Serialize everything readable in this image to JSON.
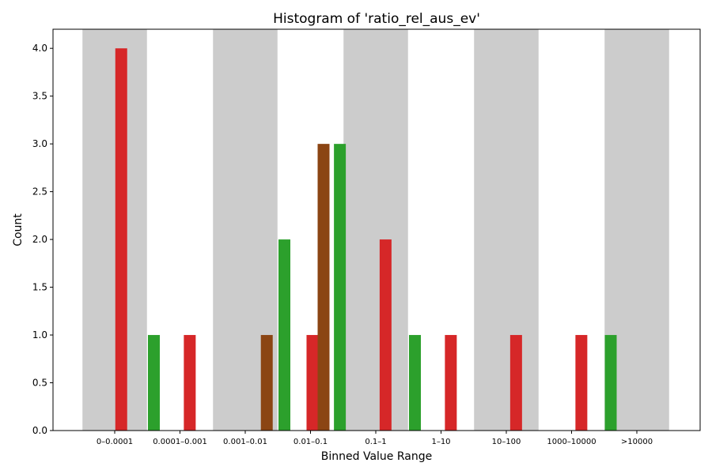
{
  "chart_data": {
    "type": "bar",
    "title": "Histogram of 'ratio_rel_aus_ev'",
    "xlabel": "Binned Value Range",
    "ylabel": "Count",
    "ylim": [
      0,
      4.2
    ],
    "yticks": [
      "0.0",
      "0.5",
      "1.0",
      "1.5",
      "2.0",
      "2.5",
      "3.0",
      "3.5",
      "4.0"
    ],
    "categories": [
      "0–0.0001",
      "0.0001–0.001",
      "0.001–0.01",
      "0.01–0.1",
      "0.1–1",
      "1–10",
      "10–100",
      "1000–10000",
      ">10000"
    ],
    "shaded_bands": [
      "0–0.0001",
      "0.001–0.01",
      "0.1–1",
      "10–100",
      ">10000"
    ],
    "colors": {
      "red": "#d62728",
      "green": "#2ca02c",
      "brown": "#8b4513",
      "band": "#cccccc"
    },
    "bars": [
      {
        "x": 0.1,
        "value": 4,
        "color": "red"
      },
      {
        "x": 0.6,
        "value": 1,
        "color": "green"
      },
      {
        "x": 1.15,
        "value": 1,
        "color": "red"
      },
      {
        "x": 2.33,
        "value": 1,
        "color": "brown"
      },
      {
        "x": 2.6,
        "value": 2,
        "color": "green"
      },
      {
        "x": 3.03,
        "value": 1,
        "color": "red"
      },
      {
        "x": 3.2,
        "value": 3,
        "color": "brown"
      },
      {
        "x": 3.45,
        "value": 3,
        "color": "green"
      },
      {
        "x": 4.15,
        "value": 2,
        "color": "red"
      },
      {
        "x": 4.6,
        "value": 1,
        "color": "green"
      },
      {
        "x": 5.15,
        "value": 1,
        "color": "red"
      },
      {
        "x": 6.15,
        "value": 1,
        "color": "red"
      },
      {
        "x": 7.15,
        "value": 1,
        "color": "red"
      },
      {
        "x": 7.6,
        "value": 1,
        "color": "green"
      }
    ]
  }
}
